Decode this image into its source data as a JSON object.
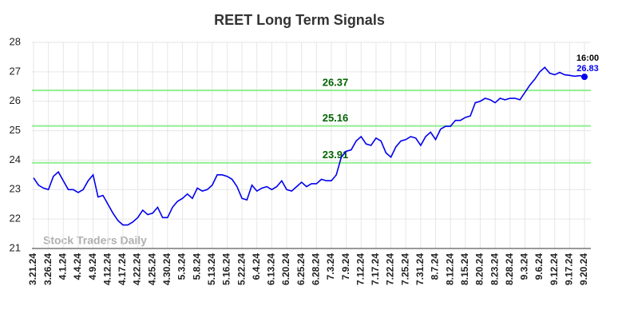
{
  "chart_data": {
    "type": "line",
    "title": "REET Long Term Signals",
    "categories": [
      "3.21.24",
      null,
      null,
      "3.26.24",
      null,
      null,
      "4.1.24",
      null,
      null,
      "4.4.24",
      null,
      null,
      "4.9.24",
      null,
      null,
      "4.12.24",
      null,
      null,
      "4.17.24",
      null,
      null,
      "4.22.24",
      null,
      null,
      "4.25.24",
      null,
      null,
      "4.30.24",
      null,
      null,
      "5.3.24",
      null,
      null,
      "5.8.24",
      null,
      null,
      "5.13.24",
      null,
      null,
      "5.16.24",
      null,
      null,
      "5.22.24",
      null,
      null,
      "6.4.24",
      null,
      null,
      "6.13.24",
      null,
      null,
      "6.20.24",
      null,
      null,
      "6.25.24",
      null,
      null,
      "6.28.24",
      null,
      null,
      "7.3.24",
      null,
      null,
      "7.9.24",
      null,
      null,
      "7.12.24",
      null,
      null,
      "7.17.24",
      null,
      null,
      "7.22.24",
      null,
      null,
      "7.25.24",
      null,
      null,
      "7.31.24",
      null,
      null,
      "8.7.24",
      null,
      null,
      "8.12.24",
      null,
      null,
      "8.15.24",
      null,
      null,
      "8.20.24",
      null,
      null,
      "8.23.24",
      null,
      null,
      "8.28.24",
      null,
      null,
      "9.3.24",
      null,
      null,
      "9.6.24",
      null,
      null,
      "9.12.24",
      null,
      null,
      "9.17.24",
      null,
      null,
      "9.20.24"
    ],
    "series": [
      {
        "color": "#0000ee",
        "values": [
          23.4,
          23.15,
          23.05,
          23.0,
          23.45,
          23.6,
          23.3,
          23.0,
          23.0,
          22.9,
          23.0,
          23.3,
          23.5,
          22.75,
          22.8,
          22.5,
          22.2,
          21.95,
          21.8,
          21.8,
          21.9,
          22.05,
          22.3,
          22.15,
          22.2,
          22.4,
          22.05,
          22.05,
          22.4,
          22.6,
          22.7,
          22.85,
          22.7,
          23.05,
          22.95,
          23.0,
          23.15,
          23.5,
          23.5,
          23.45,
          23.35,
          23.1,
          22.7,
          22.65,
          23.15,
          22.95,
          23.05,
          23.1,
          23.0,
          23.1,
          23.3,
          23.0,
          22.95,
          23.1,
          23.25,
          23.1,
          23.2,
          23.2,
          23.35,
          23.3,
          23.3,
          23.5,
          24.1,
          24.3,
          24.35,
          24.65,
          24.8,
          24.55,
          24.5,
          24.75,
          24.65,
          24.25,
          24.1,
          24.45,
          24.65,
          24.7,
          24.8,
          24.75,
          24.5,
          24.8,
          24.95,
          24.7,
          25.05,
          25.15,
          25.15,
          25.35,
          25.35,
          25.45,
          25.5,
          25.95,
          26.0,
          26.1,
          26.05,
          25.95,
          26.1,
          26.05,
          26.1,
          26.1,
          26.05,
          26.3,
          26.55,
          26.75,
          27.0,
          27.15,
          26.95,
          26.9,
          26.98,
          26.9,
          26.88,
          26.85,
          26.87,
          26.83
        ]
      }
    ],
    "reference_lines": [
      26.37,
      25.16,
      23.91
    ],
    "reference_color": "#90ee90",
    "reference_label_color": "#006400",
    "last_time": "16:00",
    "ylim": [
      21,
      28
    ],
    "yticks": [
      21,
      22,
      23,
      24,
      25,
      26,
      27,
      28
    ],
    "grid": true,
    "watermark": "Stock Traders Daily"
  }
}
